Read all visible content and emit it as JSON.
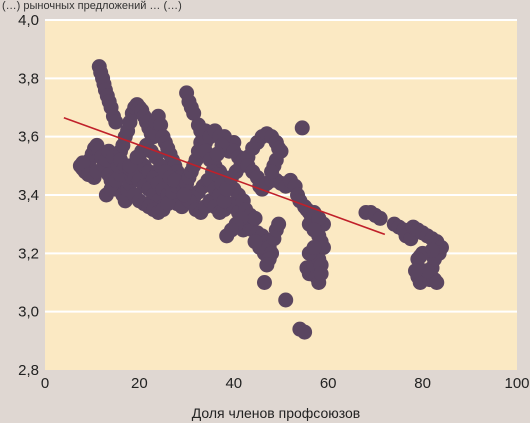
{
  "chart_data": {
    "type": "scatter",
    "title_fragment": "(…) рыночных предложений … (…)",
    "xlabel": "Доля членов профсоюзов",
    "ylabel": "",
    "xlim": [
      0,
      100
    ],
    "ylim": [
      2.8,
      4.0
    ],
    "x_ticks": [
      "0",
      "20",
      "40",
      "60",
      "80",
      "100"
    ],
    "y_ticks": [
      "2,8",
      "3,0",
      "3,2",
      "3,4",
      "3,6",
      "3,8",
      "4,0"
    ],
    "grid": "horizontal",
    "colors": {
      "plot_bg": "#fbe9c3",
      "point": "#5a4560",
      "trend": "#c0202a",
      "page_bg": "#dfd7d2",
      "grid": "#ffffff"
    },
    "trend_line": {
      "x": [
        4,
        72
      ],
      "y": [
        3.665,
        3.265
      ]
    },
    "points": [
      [
        11.5,
        3.84
      ],
      [
        11.8,
        3.82
      ],
      [
        12.2,
        3.8
      ],
      [
        12.5,
        3.78
      ],
      [
        12.8,
        3.76
      ],
      [
        13.2,
        3.74
      ],
      [
        13.6,
        3.72
      ],
      [
        14.0,
        3.7
      ],
      [
        14.5,
        3.67
      ],
      [
        15.0,
        3.65
      ],
      [
        7.5,
        3.5
      ],
      [
        8.0,
        3.49
      ],
      [
        8.5,
        3.48
      ],
      [
        9.0,
        3.5
      ],
      [
        9.5,
        3.52
      ],
      [
        10.0,
        3.54
      ],
      [
        10.5,
        3.56
      ],
      [
        11.0,
        3.57
      ],
      [
        11.5,
        3.55
      ],
      [
        12.0,
        3.53
      ],
      [
        8.0,
        3.51
      ],
      [
        9.2,
        3.47
      ],
      [
        10.4,
        3.46
      ],
      [
        11.0,
        3.48
      ],
      [
        12.5,
        3.5
      ],
      [
        13.0,
        3.52
      ],
      [
        13.5,
        3.47
      ],
      [
        14.0,
        3.45
      ],
      [
        14.5,
        3.43
      ],
      [
        15.0,
        3.42
      ],
      [
        13.0,
        3.4
      ],
      [
        14.0,
        3.42
      ],
      [
        15.0,
        3.45
      ],
      [
        16.0,
        3.47
      ],
      [
        16.5,
        3.4
      ],
      [
        17.0,
        3.38
      ],
      [
        17.5,
        3.42
      ],
      [
        18.0,
        3.44
      ],
      [
        18.5,
        3.46
      ],
      [
        19.0,
        3.48
      ],
      [
        13.5,
        3.55
      ],
      [
        14.5,
        3.53
      ],
      [
        15.5,
        3.5
      ],
      [
        16.0,
        3.55
      ],
      [
        16.5,
        3.57
      ],
      [
        17.0,
        3.6
      ],
      [
        17.5,
        3.62
      ],
      [
        18.0,
        3.65
      ],
      [
        18.5,
        3.68
      ],
      [
        19.0,
        3.7
      ],
      [
        19.5,
        3.71
      ],
      [
        20.0,
        3.7
      ],
      [
        20.5,
        3.69
      ],
      [
        21.0,
        3.67
      ],
      [
        21.5,
        3.65
      ],
      [
        22.0,
        3.63
      ],
      [
        22.5,
        3.61
      ],
      [
        23.0,
        3.6
      ],
      [
        23.5,
        3.65
      ],
      [
        24.0,
        3.67
      ],
      [
        24.5,
        3.64
      ],
      [
        25.0,
        3.6
      ],
      [
        25.5,
        3.58
      ],
      [
        26.0,
        3.56
      ],
      [
        26.5,
        3.54
      ],
      [
        27.0,
        3.52
      ],
      [
        27.5,
        3.5
      ],
      [
        28.0,
        3.48
      ],
      [
        28.5,
        3.46
      ],
      [
        29.0,
        3.44
      ],
      [
        16.0,
        3.52
      ],
      [
        17.0,
        3.5
      ],
      [
        18.0,
        3.49
      ],
      [
        19.0,
        3.47
      ],
      [
        20.0,
        3.45
      ],
      [
        21.0,
        3.43
      ],
      [
        22.0,
        3.42
      ],
      [
        23.0,
        3.4
      ],
      [
        24.0,
        3.38
      ],
      [
        25.0,
        3.36
      ],
      [
        20.0,
        3.52
      ],
      [
        21.0,
        3.5
      ],
      [
        22.0,
        3.48
      ],
      [
        23.0,
        3.46
      ],
      [
        24.0,
        3.44
      ],
      [
        25.0,
        3.42
      ],
      [
        26.0,
        3.4
      ],
      [
        27.0,
        3.39
      ],
      [
        28.0,
        3.37
      ],
      [
        29.0,
        3.36
      ],
      [
        19.0,
        3.4
      ],
      [
        20.0,
        3.38
      ],
      [
        21.0,
        3.37
      ],
      [
        22.0,
        3.36
      ],
      [
        23.0,
        3.35
      ],
      [
        24.0,
        3.34
      ],
      [
        25.0,
        3.35
      ],
      [
        26.0,
        3.37
      ],
      [
        27.0,
        3.41
      ],
      [
        28.0,
        3.43
      ],
      [
        18.0,
        3.5
      ],
      [
        19.5,
        3.53
      ],
      [
        20.5,
        3.55
      ],
      [
        21.5,
        3.57
      ],
      [
        22.5,
        3.55
      ],
      [
        23.5,
        3.53
      ],
      [
        24.5,
        3.5
      ],
      [
        25.5,
        3.48
      ],
      [
        26.5,
        3.46
      ],
      [
        27.5,
        3.45
      ],
      [
        29.5,
        3.42
      ],
      [
        30.0,
        3.44
      ],
      [
        30.5,
        3.46
      ],
      [
        31.0,
        3.48
      ],
      [
        31.5,
        3.5
      ],
      [
        32.0,
        3.52
      ],
      [
        32.5,
        3.55
      ],
      [
        33.0,
        3.58
      ],
      [
        33.5,
        3.6
      ],
      [
        34.0,
        3.62
      ],
      [
        30.0,
        3.75
      ],
      [
        30.5,
        3.72
      ],
      [
        31.0,
        3.7
      ],
      [
        31.5,
        3.68
      ],
      [
        32.5,
        3.64
      ],
      [
        33.0,
        3.62
      ],
      [
        34.0,
        3.58
      ],
      [
        35.0,
        3.6
      ],
      [
        36.0,
        3.62
      ],
      [
        37.0,
        3.6
      ],
      [
        34.0,
        3.55
      ],
      [
        35.0,
        3.52
      ],
      [
        36.0,
        3.5
      ],
      [
        37.0,
        3.48
      ],
      [
        38.0,
        3.46
      ],
      [
        39.0,
        3.44
      ],
      [
        40.0,
        3.42
      ],
      [
        41.0,
        3.4
      ],
      [
        39.0,
        3.55
      ],
      [
        40.0,
        3.58
      ],
      [
        38.0,
        3.6
      ],
      [
        37.5,
        3.57
      ],
      [
        36.5,
        3.54
      ],
      [
        35.5,
        3.48
      ],
      [
        34.5,
        3.45
      ],
      [
        33.5,
        3.43
      ],
      [
        32.5,
        3.41
      ],
      [
        31.5,
        3.39
      ],
      [
        30.5,
        3.38
      ],
      [
        29.5,
        3.4
      ],
      [
        32.0,
        3.35
      ],
      [
        33.0,
        3.34
      ],
      [
        34.0,
        3.36
      ],
      [
        35.0,
        3.38
      ],
      [
        36.0,
        3.36
      ],
      [
        37.0,
        3.34
      ],
      [
        38.0,
        3.35
      ],
      [
        39.0,
        3.37
      ],
      [
        40.0,
        3.36
      ],
      [
        41.0,
        3.34
      ],
      [
        35.0,
        3.45
      ],
      [
        36.0,
        3.42
      ],
      [
        37.0,
        3.4
      ],
      [
        38.0,
        3.38
      ],
      [
        36.5,
        3.47
      ],
      [
        37.5,
        3.44
      ],
      [
        38.5,
        3.42
      ],
      [
        39.5,
        3.46
      ],
      [
        40.5,
        3.48
      ],
      [
        41.5,
        3.5
      ],
      [
        40.0,
        3.55
      ],
      [
        41.0,
        3.53
      ],
      [
        42.0,
        3.52
      ],
      [
        43.0,
        3.53
      ],
      [
        44.0,
        3.56
      ],
      [
        45.0,
        3.58
      ],
      [
        46.0,
        3.6
      ],
      [
        47.0,
        3.61
      ],
      [
        48.0,
        3.6
      ],
      [
        49.0,
        3.58
      ],
      [
        43.0,
        3.5
      ],
      [
        44.0,
        3.48
      ],
      [
        45.0,
        3.46
      ],
      [
        45.5,
        3.43
      ],
      [
        46.0,
        3.42
      ],
      [
        47.0,
        3.44
      ],
      [
        48.0,
        3.45
      ],
      [
        49.0,
        3.45
      ],
      [
        50.0,
        3.44
      ],
      [
        51.0,
        3.43
      ],
      [
        49.0,
        3.58
      ],
      [
        49.5,
        3.56
      ],
      [
        50.0,
        3.55
      ],
      [
        49.0,
        3.52
      ],
      [
        48.5,
        3.5
      ],
      [
        48.0,
        3.48
      ],
      [
        52.0,
        3.45
      ],
      [
        53.0,
        3.43
      ],
      [
        53.5,
        3.4
      ],
      [
        54.0,
        3.38
      ],
      [
        41.0,
        3.3
      ],
      [
        42.0,
        3.28
      ],
      [
        43.0,
        3.3
      ],
      [
        44.0,
        3.28
      ],
      [
        45.0,
        3.27
      ],
      [
        46.0,
        3.26
      ],
      [
        47.0,
        3.24
      ],
      [
        46.5,
        3.2
      ],
      [
        45.5,
        3.22
      ],
      [
        44.5,
        3.24
      ],
      [
        42.0,
        3.38
      ],
      [
        42.5,
        3.35
      ],
      [
        43.5,
        3.33
      ],
      [
        44.5,
        3.32
      ],
      [
        41.5,
        3.32
      ],
      [
        40.5,
        3.3
      ],
      [
        39.5,
        3.28
      ],
      [
        38.5,
        3.26
      ],
      [
        47.5,
        3.22
      ],
      [
        48.5,
        3.25
      ],
      [
        49.0,
        3.28
      ],
      [
        49.5,
        3.3
      ],
      [
        48.0,
        3.2
      ],
      [
        47.5,
        3.18
      ],
      [
        47.0,
        3.16
      ],
      [
        46.5,
        3.1
      ],
      [
        54.5,
        3.63
      ],
      [
        55.0,
        3.36
      ],
      [
        55.5,
        3.35
      ],
      [
        56.0,
        3.34
      ],
      [
        55.5,
        3.15
      ],
      [
        56.0,
        3.13
      ],
      [
        56.5,
        3.14
      ],
      [
        57.0,
        3.16
      ],
      [
        57.5,
        3.12
      ],
      [
        57.5,
        3.2
      ],
      [
        58.0,
        3.18
      ],
      [
        58.5,
        3.16
      ],
      [
        58.0,
        3.1
      ],
      [
        58.5,
        3.13
      ],
      [
        56.0,
        3.3
      ],
      [
        56.5,
        3.32
      ],
      [
        57.0,
        3.34
      ],
      [
        57.5,
        3.28
      ],
      [
        58.0,
        3.26
      ],
      [
        58.5,
        3.24
      ],
      [
        59.0,
        3.22
      ],
      [
        59.0,
        3.3
      ],
      [
        58.0,
        3.32
      ],
      [
        57.0,
        3.28
      ],
      [
        54.0,
        2.94
      ],
      [
        55.0,
        2.93
      ],
      [
        51.0,
        3.04
      ],
      [
        56.0,
        3.2
      ],
      [
        57.0,
        3.22
      ],
      [
        68.0,
        3.34
      ],
      [
        69.0,
        3.34
      ],
      [
        70.0,
        3.33
      ],
      [
        71.0,
        3.32
      ],
      [
        74.0,
        3.3
      ],
      [
        75.0,
        3.29
      ],
      [
        76.0,
        3.28
      ],
      [
        77.0,
        3.27
      ],
      [
        76.5,
        3.26
      ],
      [
        77.5,
        3.25
      ],
      [
        78.0,
        3.29
      ],
      [
        79.0,
        3.28
      ],
      [
        80.0,
        3.27
      ],
      [
        81.0,
        3.26
      ],
      [
        82.0,
        3.25
      ],
      [
        83.0,
        3.24
      ],
      [
        84.0,
        3.22
      ],
      [
        83.5,
        3.2
      ],
      [
        82.5,
        3.18
      ],
      [
        82.0,
        3.21
      ],
      [
        80.0,
        3.2
      ],
      [
        79.5,
        3.19
      ],
      [
        79.0,
        3.18
      ],
      [
        80.5,
        3.14
      ],
      [
        81.0,
        3.12
      ],
      [
        80.0,
        3.11
      ],
      [
        79.0,
        3.12
      ],
      [
        79.5,
        3.1
      ],
      [
        81.5,
        3.11
      ],
      [
        82.5,
        3.11
      ],
      [
        83.0,
        3.1
      ],
      [
        82.0,
        3.15
      ],
      [
        81.0,
        3.14
      ],
      [
        78.5,
        3.14
      ]
    ]
  }
}
